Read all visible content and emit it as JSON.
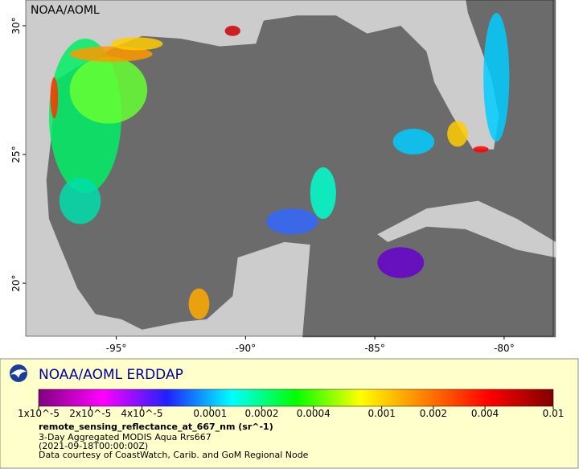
{
  "map": {
    "watermark": "NOAA/AOML",
    "xlim": [
      -98.5,
      -78.1
    ],
    "ylim": [
      17.94,
      31.0
    ],
    "xticks": [
      {
        "value": -95,
        "label": "-95°"
      },
      {
        "value": -90,
        "label": "-90°"
      },
      {
        "value": -85,
        "label": "-85°"
      },
      {
        "value": -80,
        "label": "-80°"
      }
    ],
    "yticks": [
      {
        "value": 20,
        "label": "20°"
      },
      {
        "value": 25,
        "label": "25°"
      },
      {
        "value": 30,
        "label": "30°"
      }
    ]
  },
  "legend": {
    "title": "NOAA/AOML ERDDAP",
    "colorbar": {
      "scale": "log",
      "range": [
        1e-05,
        0.01
      ],
      "colors": [
        "#800080",
        "#ff00ff",
        "#2020ff",
        "#00ffff",
        "#00ff00",
        "#ffff00",
        "#ff8000",
        "#ff0000",
        "#800000"
      ],
      "ticks": [
        {
          "value": 1e-05,
          "label": "1x10^-5"
        },
        {
          "value": 2e-05,
          "label": "2x10^-5"
        },
        {
          "value": 4e-05,
          "label": "4x10^-5"
        },
        0.0001,
        0.0002,
        0.0004,
        0.001,
        0.002,
        0.004,
        0.01
      ]
    },
    "variable": "remote_sensing_reflectance_at_667_nm (sr^-1)",
    "lines": [
      "3-Day Aggregated MODIS Aqua Rrs667",
      "(2021-09-18T00:00:00Z)",
      "Data courtesy of CoastWatch, Carib. and GoM Regional Node"
    ]
  }
}
